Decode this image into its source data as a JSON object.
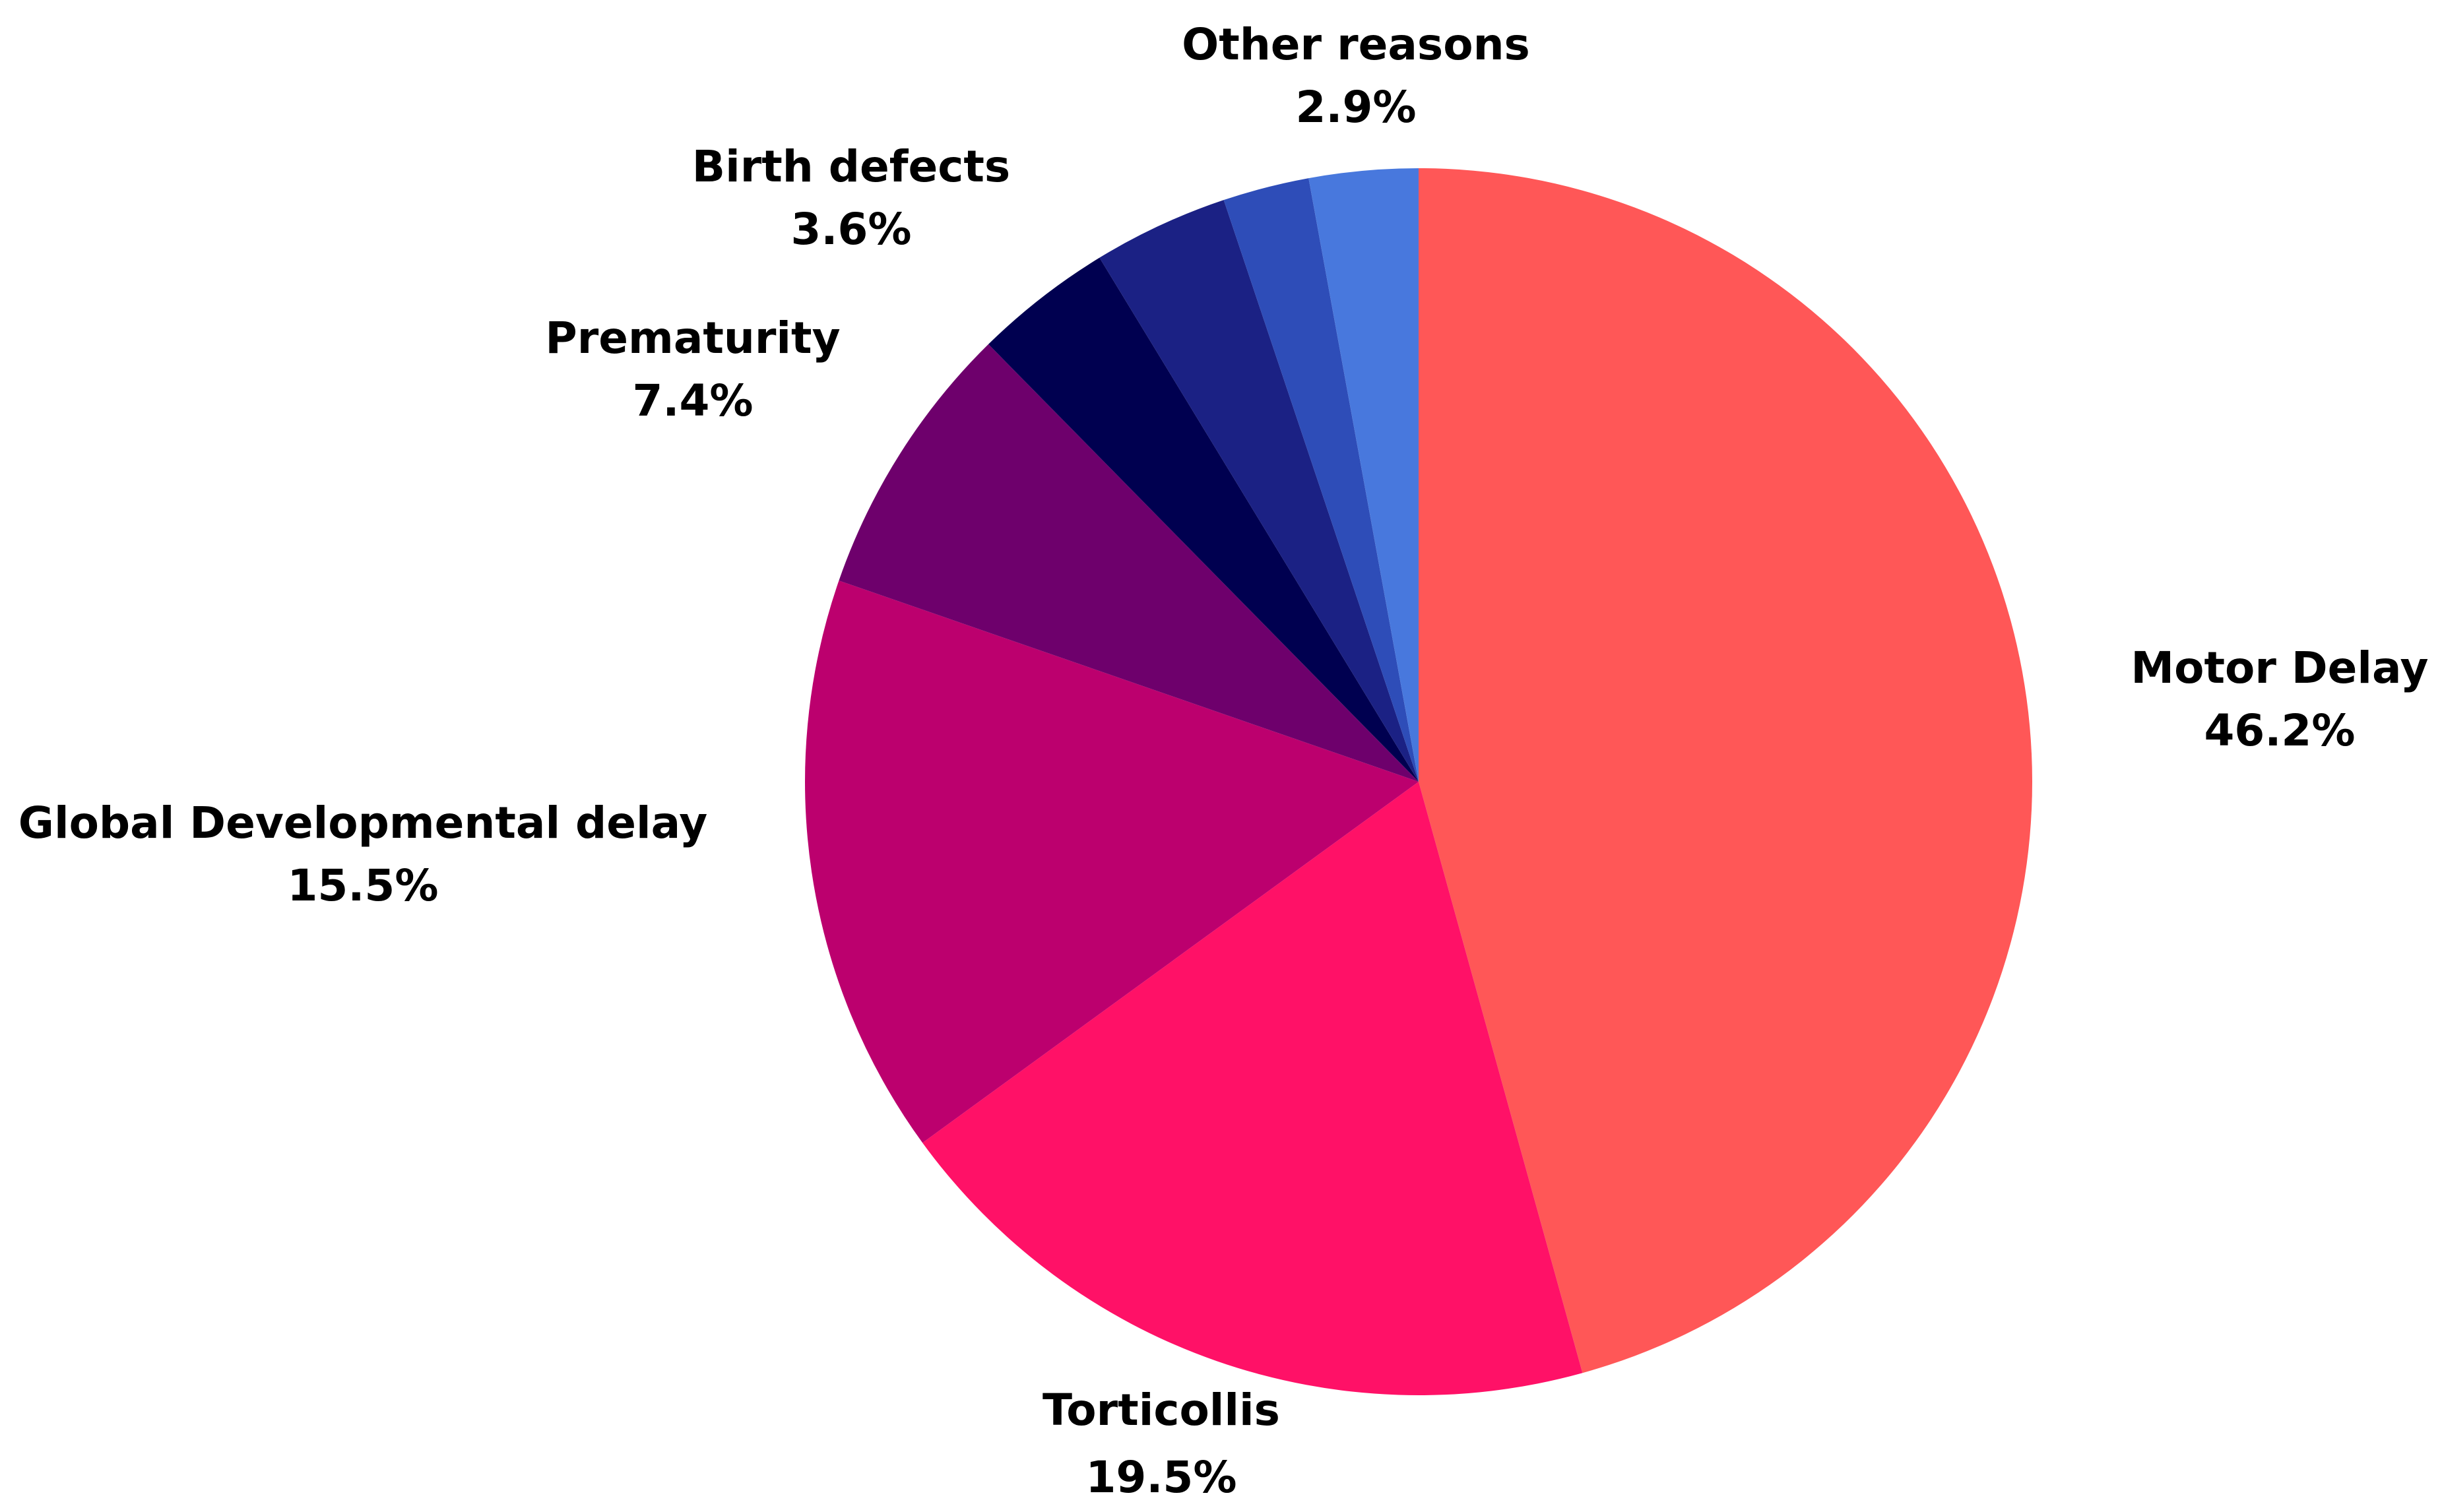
{
  "chart_data": {
    "type": "pie",
    "start_angle": "12 o'clock",
    "direction": "clockwise",
    "legend": "none",
    "slices": [
      {
        "label": "Motor Delay",
        "value": 46.2,
        "value_label": "46.2%",
        "color": "#FF5757"
      },
      {
        "label": "Torticollis",
        "value": 19.5,
        "value_label": "19.5%",
        "color": "#FF1167"
      },
      {
        "label": "Global Developmental delay",
        "value": 15.5,
        "value_label": "15.5%",
        "color": "#BC006E"
      },
      {
        "label": "Prematurity",
        "value": 7.4,
        "value_label": "7.4%",
        "color": "#6E006C"
      },
      {
        "label": "",
        "value": 3.7,
        "value_label": "",
        "color": "#000050"
      },
      {
        "label": "Birth defects",
        "value": 3.6,
        "value_label": "3.6%",
        "color": "#1B2184"
      },
      {
        "label": "",
        "value": 2.3,
        "value_label": "",
        "color": "#2E4DB8"
      },
      {
        "label": "Other reasons",
        "value": 2.9,
        "value_label": "2.9%",
        "color": "#4878DD"
      }
    ]
  }
}
